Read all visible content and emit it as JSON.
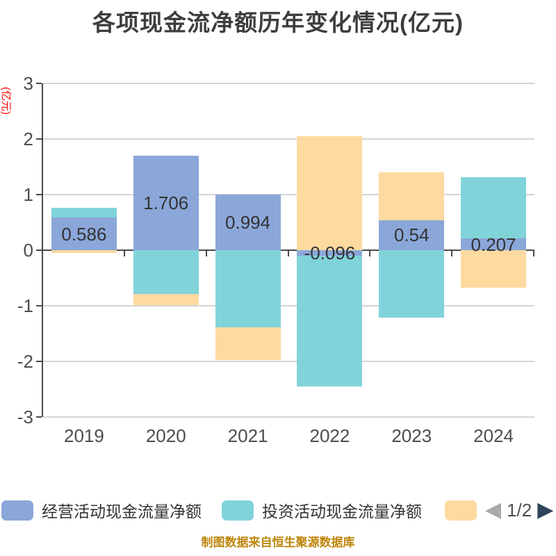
{
  "title": "各项现金流净额历年变化情况(亿元)",
  "y_axis": {
    "unit_label": "(亿元)",
    "ticks": [
      "3",
      "2",
      "1",
      "0",
      "-1",
      "-2",
      "-3"
    ],
    "min": -3,
    "max": 3
  },
  "x_axis": {
    "categories": [
      "2019",
      "2020",
      "2021",
      "2022",
      "2023",
      "2024"
    ]
  },
  "chart_data": {
    "type": "bar",
    "stacked": true,
    "title": "各项现金流净额历年变化情况(亿元)",
    "ylabel": "(亿元)",
    "ylim": [
      -3,
      3
    ],
    "grid": true,
    "legend_position": "bottom",
    "categories": [
      "2019",
      "2020",
      "2021",
      "2022",
      "2023",
      "2024"
    ],
    "series": [
      {
        "name": "经营活动现金流量净额",
        "color": "#8ba7d9",
        "values": [
          0.586,
          1.706,
          0.994,
          -0.096,
          0.54,
          0.207
        ],
        "labels": [
          "0.586",
          "1.706",
          "0.994",
          "-0.096",
          "0.54",
          "0.207"
        ]
      },
      {
        "name": "投资活动现金流量净额",
        "color": "#81d3da",
        "values": [
          0.18,
          -0.79,
          -1.39,
          -2.36,
          -1.21,
          1.1
        ]
      },
      {
        "name": "",
        "color": "#fcdaa0",
        "values": [
          -0.05,
          -0.2,
          -0.58,
          2.05,
          0.86,
          -0.68
        ]
      }
    ]
  },
  "legend": {
    "items": [
      {
        "label": "经营活动现金流量净额",
        "color": "#8ba7d9"
      },
      {
        "label": "投资活动现金流量净额",
        "color": "#81d3da"
      },
      {
        "label": "",
        "color": "#fcdaa0"
      }
    ],
    "pager": {
      "prev_icon": "◀",
      "next_icon": "▶",
      "text": "1/2",
      "prev_color": "#a9a9a9",
      "next_color": "#30455c"
    }
  },
  "footer": {
    "source_text": "制图数据来自恒生聚源数据库"
  },
  "colors": {
    "title_text": "#3d3d3d",
    "axis_line": "#4a4a4a",
    "gridline": "#d4d4d4",
    "tick_text": "#4d4d4d",
    "value_label_text": "#333333",
    "y_unit_text": "#ff0000",
    "footer_text": "#be860a",
    "background": "#ffffff"
  }
}
